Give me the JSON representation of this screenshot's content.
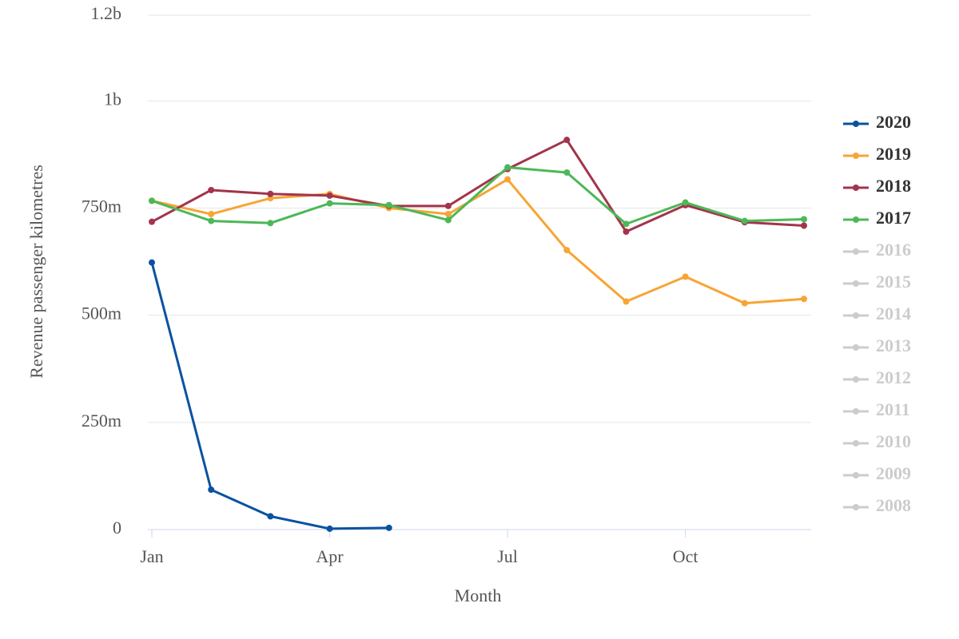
{
  "chart_data": {
    "type": "line",
    "x_label": "Month",
    "y_label": "Revenue passenger kilometres",
    "categories": [
      "Jan",
      null,
      null,
      "Apr",
      null,
      null,
      "Jul",
      null,
      null,
      "Oct",
      null,
      null
    ],
    "ylim": [
      0,
      1200000000
    ],
    "yticks": [
      0,
      {
        "value": 250000000,
        "label": "250m"
      },
      {
        "value": 500000000,
        "label": "500m"
      },
      {
        "value": 750000000,
        "label": "750m"
      },
      {
        "value": 1000000000,
        "label": "1b"
      },
      {
        "value": 1200000000,
        "label": "1.2b"
      }
    ],
    "grid": true,
    "legend": "right",
    "series": [
      {
        "name": "2020",
        "color": "#0a52a0",
        "visible": true,
        "values": [
          623000000,
          93000000,
          31000000,
          2000000,
          4000000,
          null,
          null,
          null,
          null,
          null,
          null,
          null
        ]
      },
      {
        "name": "2019",
        "color": "#f7a535",
        "visible": true,
        "values": [
          767000000,
          736000000,
          773000000,
          783000000,
          750000000,
          736000000,
          817000000,
          652000000,
          532000000,
          590000000,
          528000000,
          538000000
        ]
      },
      {
        "name": "2018",
        "color": "#a3344b",
        "visible": true,
        "values": [
          718000000,
          792000000,
          783000000,
          779000000,
          755000000,
          755000000,
          841000000,
          909000000,
          695000000,
          757000000,
          717000000,
          709000000
        ]
      },
      {
        "name": "2017",
        "color": "#4cb857",
        "visible": true,
        "values": [
          767000000,
          720000000,
          715000000,
          761000000,
          757000000,
          722000000,
          845000000,
          833000000,
          713000000,
          763000000,
          720000000,
          724000000
        ]
      },
      {
        "name": "2016",
        "color": "#cccccc",
        "visible": false,
        "values": [
          null,
          null,
          null,
          null,
          null,
          null,
          null,
          null,
          null,
          null,
          null,
          null
        ]
      },
      {
        "name": "2015",
        "color": "#cccccc",
        "visible": false,
        "values": [
          null,
          null,
          null,
          null,
          null,
          null,
          null,
          null,
          null,
          null,
          null,
          null
        ]
      },
      {
        "name": "2014",
        "color": "#cccccc",
        "visible": false,
        "values": [
          null,
          null,
          null,
          null,
          null,
          null,
          null,
          null,
          null,
          null,
          null,
          null
        ]
      },
      {
        "name": "2013",
        "color": "#cccccc",
        "visible": false,
        "values": [
          null,
          null,
          null,
          null,
          null,
          null,
          null,
          null,
          null,
          null,
          null,
          null
        ]
      },
      {
        "name": "2012",
        "color": "#cccccc",
        "visible": false,
        "values": [
          null,
          null,
          null,
          null,
          null,
          null,
          null,
          null,
          null,
          null,
          null,
          null
        ]
      },
      {
        "name": "2011",
        "color": "#cccccc",
        "visible": false,
        "values": [
          null,
          null,
          null,
          null,
          null,
          null,
          null,
          null,
          null,
          null,
          null,
          null
        ]
      },
      {
        "name": "2010",
        "color": "#cccccc",
        "visible": false,
        "values": [
          null,
          null,
          null,
          null,
          null,
          null,
          null,
          null,
          null,
          null,
          null,
          null
        ]
      },
      {
        "name": "2009",
        "color": "#cccccc",
        "visible": false,
        "values": [
          null,
          null,
          null,
          null,
          null,
          null,
          null,
          null,
          null,
          null,
          null,
          null
        ]
      },
      {
        "name": "2008",
        "color": "#cccccc",
        "visible": false,
        "values": [
          null,
          null,
          null,
          null,
          null,
          null,
          null,
          null,
          null,
          null,
          null,
          null
        ]
      }
    ]
  }
}
